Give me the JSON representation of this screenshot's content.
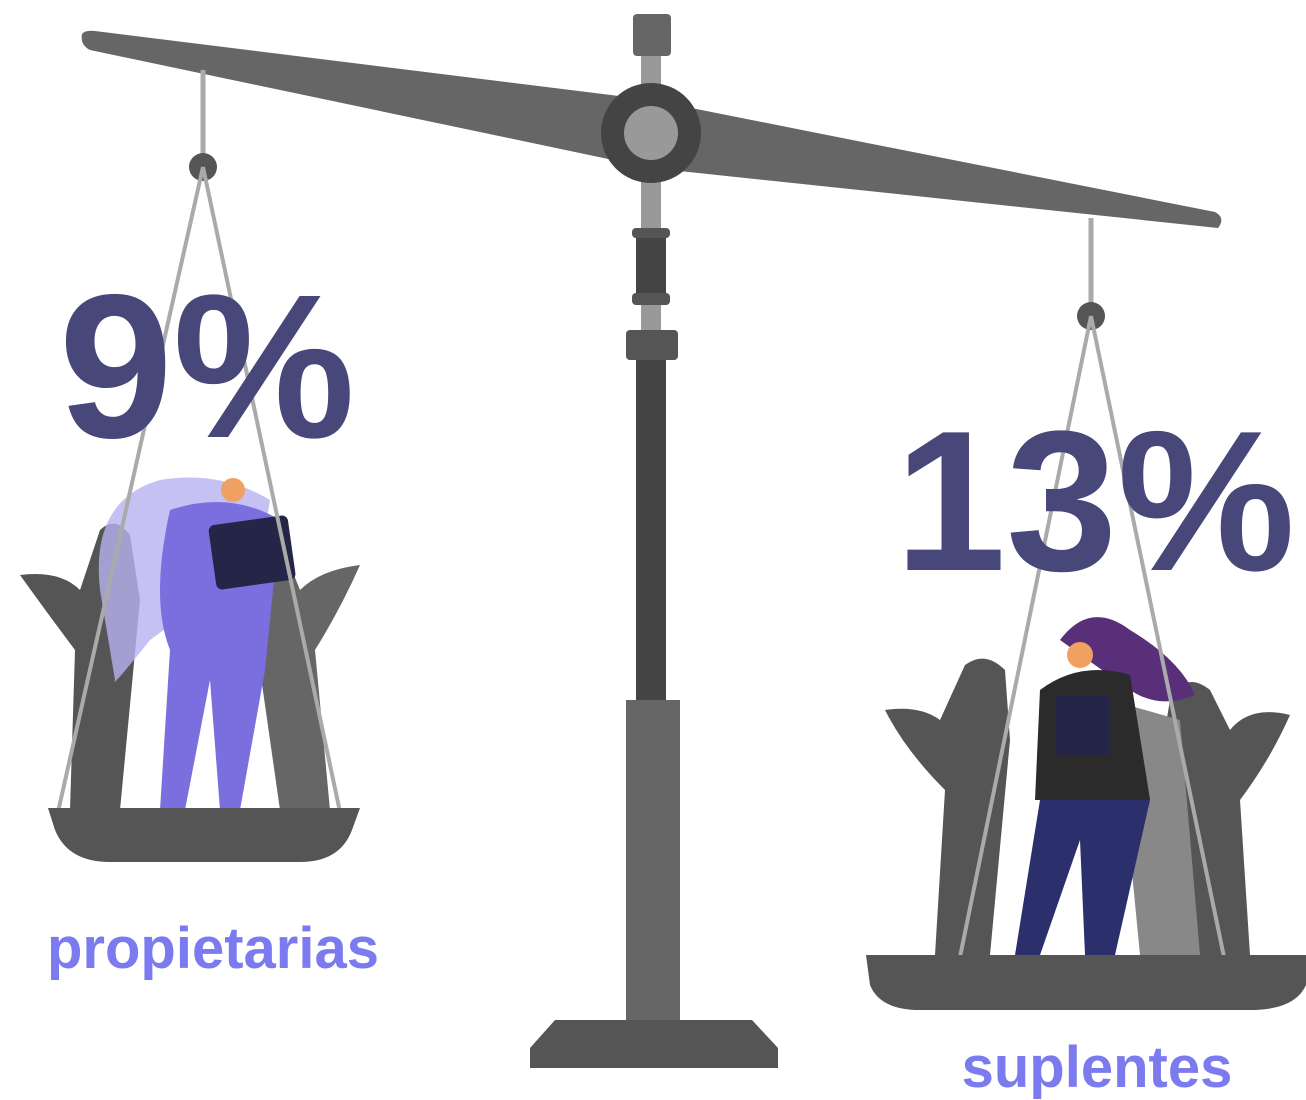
{
  "left": {
    "percent": "9%",
    "label": "propietarias"
  },
  "right": {
    "percent": "13%",
    "label": "suplentes"
  }
}
